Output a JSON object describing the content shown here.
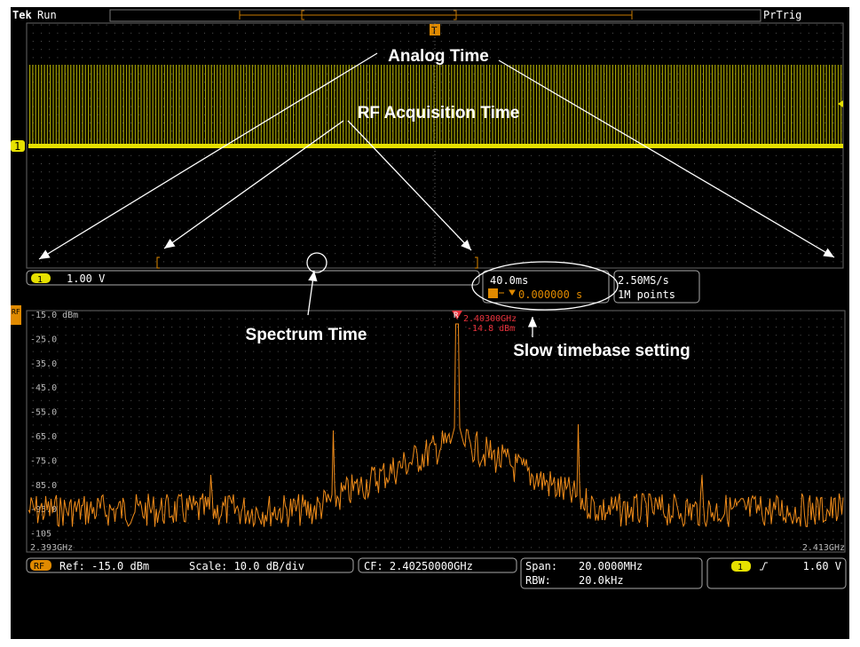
{
  "header": {
    "brand": "Tek",
    "status": "Run",
    "trigger_status": "PrTrig",
    "trigger_marker": "T"
  },
  "analog": {
    "channel_marker": "1",
    "scale": "1.00 V",
    "timebase": "40.0ms",
    "trigger_position": "0.000000 s",
    "sample_rate": "2.50MS/s",
    "record_length": "1M points"
  },
  "annotations": {
    "analog_time": "Analog Time",
    "rf_acquisition_time": "RF Acquisition Time",
    "spectrum_time": "Spectrum Time",
    "slow_timebase": "Slow timebase setting"
  },
  "spectrum": {
    "rf_marker": "RF",
    "levels": [
      "-15.0 dBm",
      "-25.0",
      "-35.0",
      "-45.0",
      "-55.0",
      "-65.0",
      "-75.0",
      "-85.0",
      "-95.0",
      "-105"
    ],
    "start_freq": "2.393GHz",
    "stop_freq": "2.413GHz",
    "peak_marker": "R",
    "peak_freq": "2.40300GHz",
    "peak_level": "-14.8 dBm"
  },
  "status_bar": {
    "rf_badge": "RF",
    "ref": "Ref: -15.0 dBm",
    "scale": "Scale: 10.0 dB/div",
    "center_freq": "CF: 2.40250000GHz",
    "span_label": "Span:",
    "span": "20.0000MHz",
    "rbw_label": "RBW:",
    "rbw": "20.0kHz",
    "trigger_channel": "1",
    "trigger_level": "1.60 V"
  }
}
